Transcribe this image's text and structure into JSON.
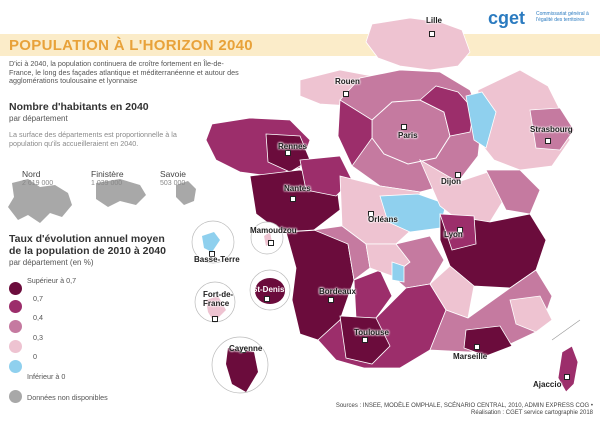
{
  "header": {
    "title": "POPULATION À L'HORIZON 2040",
    "intro": "D'ici à 2040, la population continuera de croître fortement en Île-de-France, le long des façades atlantique et méditerranéenne et autour des agglomérations toulousaine et lyonnaise",
    "brand": "cget",
    "brand_subtitle": "Commissariat général à l'égalité des territoires"
  },
  "size_legend": {
    "heading": "Nombre d'habitants en 2040",
    "subheading": "par département",
    "note": "La surface des départements est proportionnelle à la population qu'ils accueilleraient en 2040.",
    "examples": [
      {
        "name": "Nord",
        "value": "2 619 000"
      },
      {
        "name": "Finistère",
        "value": "1 039 000"
      },
      {
        "name": "Savoie",
        "value": "503 000"
      }
    ]
  },
  "color_legend": {
    "heading_line1": "Taux d'évolution annuel moyen",
    "heading_line2": "de la population de 2010 à 2040",
    "subheading": "par département (en %)",
    "top_label": "Supérieur à 0,7",
    "breaks": [
      "0,7",
      "0,4",
      "0,3",
      "0"
    ],
    "bottom_label": "Inférieur à 0",
    "na_label": "Données non disponibles",
    "colors": [
      "#6b0c3c",
      "#9c2e6b",
      "#c57aa0",
      "#eec3d1",
      "#8fd0ee",
      "#a8a8a8"
    ]
  },
  "map": {
    "cities": {
      "lille": "Lille",
      "rouen": "Rouen",
      "paris": "Paris",
      "strasbourg": "Strasbourg",
      "rennes": "Rennes",
      "nantes": "Nantes",
      "orleans": "Orléans",
      "dijon": "Dijon",
      "lyon": "Lyon",
      "bordeaux": "Bordeaux",
      "toulouse": "Toulouse",
      "marseille": "Marseille",
      "ajaccio": "Ajaccio"
    },
    "overseas": {
      "mamoudzou": "Mamoudzou",
      "basse_terre": "Basse-Terre",
      "st_denis": "St-Denis",
      "fort_de_france": "Fort-de-France",
      "cayenne": "Cayenne"
    }
  },
  "footer": {
    "sources": "Sources : INSEE, MODÈLE OMPHALE, SCÉNARIO CENTRAL, 2010, ADMIN EXPRESS COG •",
    "realisation": "Réalisation : CGET service cartographie 2018"
  }
}
